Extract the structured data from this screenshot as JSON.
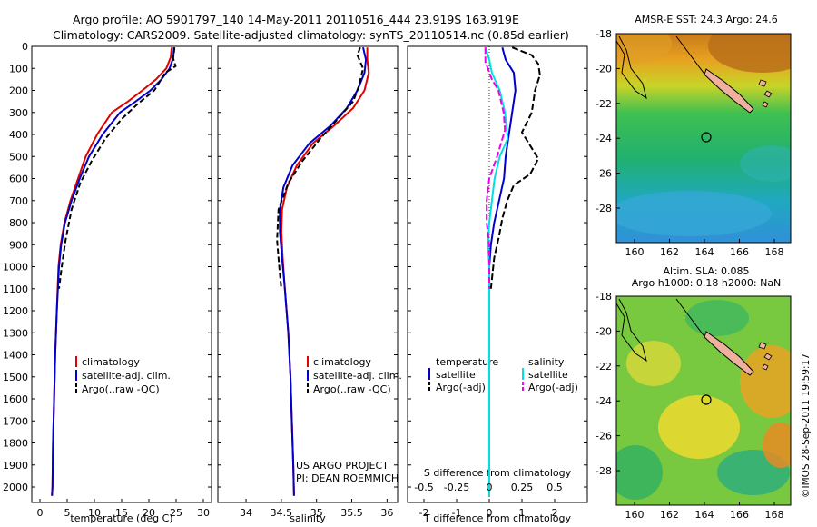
{
  "header": {
    "line1": "Argo profile: AO 5901797_140 14-May-2011 20110516_444 23.919S 163.919E",
    "line2": "Climatology: CARS2009. Satellite-adjusted climatology: synTS_20110514.nc (0.85d earlier)"
  },
  "chart_data": [
    {
      "type": "line",
      "xlabel": "temperature (deg C)",
      "ylabel": "",
      "xlim": [
        -1.5,
        31.5
      ],
      "ylim": [
        2070,
        0
      ],
      "xticks": [
        0,
        5,
        10,
        15,
        20,
        25,
        30
      ],
      "yticks": [
        0,
        100,
        200,
        300,
        400,
        500,
        600,
        700,
        800,
        900,
        1000,
        1100,
        1200,
        1300,
        1400,
        1500,
        1600,
        1700,
        1800,
        1900,
        2000
      ],
      "legend": [
        "climatology",
        "satellite-adj. clim.",
        "Argo(..raw -QC)"
      ],
      "legend_placement": "lower-left",
      "series": [
        {
          "name": "climatology",
          "color": "#e00000",
          "dash": "",
          "x": [
            24.2,
            24.0,
            23.2,
            21.3,
            18.8,
            16.2,
            13.2,
            10.5,
            8.4,
            7.0,
            5.6,
            4.5,
            3.8,
            3.4,
            3.1,
            2.8,
            2.6,
            2.4,
            2.3,
            2.2
          ],
          "y": [
            5,
            50,
            100,
            150,
            200,
            250,
            300,
            400,
            500,
            600,
            700,
            800,
            900,
            1000,
            1200,
            1400,
            1600,
            1800,
            2000,
            2040
          ]
        },
        {
          "name": "satellite-adj. clim.",
          "color": "#0000cc",
          "dash": "",
          "x": [
            24.6,
            24.5,
            23.8,
            22.3,
            20.3,
            17.6,
            14.7,
            11.5,
            9.0,
            7.3,
            5.8,
            4.6,
            3.9,
            3.5,
            3.1,
            2.8,
            2.6,
            2.4,
            2.3,
            2.2
          ],
          "y": [
            5,
            50,
            100,
            150,
            200,
            250,
            300,
            400,
            500,
            600,
            700,
            800,
            900,
            1000,
            1200,
            1400,
            1600,
            1800,
            2000,
            2040
          ]
        },
        {
          "name": "Argo(..raw -QC)",
          "color": "#000000",
          "dash": "6,3",
          "x": [
            24.7,
            24.6,
            24.4,
            24.9,
            23.0,
            21.0,
            18.0,
            15.0,
            12.0,
            9.5,
            7.4,
            5.8,
            4.7,
            4.0,
            3.5
          ],
          "y": [
            5,
            30,
            50,
            90,
            120,
            200,
            260,
            330,
            420,
            520,
            620,
            740,
            880,
            1000,
            1100
          ]
        }
      ]
    },
    {
      "type": "line",
      "xlabel": "salinity",
      "ylabel": "",
      "xlim": [
        33.6,
        36.15
      ],
      "ylim": [
        2070,
        0
      ],
      "xticks": [
        34,
        34.5,
        35,
        35.5,
        36
      ],
      "yticks": [
        0,
        100,
        200,
        300,
        400,
        500,
        600,
        700,
        800,
        900,
        1000,
        1100,
        1200,
        1300,
        1400,
        1500,
        1600,
        1700,
        1800,
        1900,
        2000
      ],
      "legend": [
        "climatology",
        "satellite-adj. clim.",
        "Argo(..raw -QC)"
      ],
      "legend_placement": "lower-right",
      "annotation": [
        "US ARGO PROJECT",
        "PI: DEAN ROEMMICH"
      ],
      "series": [
        {
          "name": "climatology",
          "color": "#e00000",
          "dash": "",
          "x": [
            35.72,
            35.72,
            35.74,
            35.68,
            35.52,
            35.25,
            34.95,
            34.72,
            34.58,
            34.51,
            34.5,
            34.52,
            34.55,
            34.6,
            34.63,
            34.65,
            34.67,
            34.68
          ],
          "y": [
            5,
            60,
            120,
            200,
            280,
            360,
            440,
            540,
            640,
            740,
            840,
            960,
            1100,
            1300,
            1500,
            1700,
            1900,
            2040
          ]
        },
        {
          "name": "satellite-adj. clim.",
          "color": "#0000cc",
          "dash": "",
          "x": [
            35.66,
            35.7,
            35.68,
            35.58,
            35.43,
            35.2,
            34.9,
            34.66,
            34.53,
            34.48,
            34.48,
            34.51,
            34.55,
            34.6,
            34.63,
            34.65,
            34.67,
            34.68
          ],
          "y": [
            5,
            60,
            120,
            200,
            280,
            360,
            440,
            540,
            640,
            740,
            840,
            960,
            1100,
            1300,
            1500,
            1700,
            1900,
            2040
          ]
        },
        {
          "name": "Argo(..raw -QC)",
          "color": "#000000",
          "dash": "6,3",
          "x": [
            35.62,
            35.58,
            35.66,
            35.6,
            35.52,
            35.3,
            35.05,
            34.8,
            34.6,
            34.46,
            34.44,
            34.47,
            34.5
          ],
          "y": [
            5,
            40,
            100,
            180,
            250,
            330,
            420,
            520,
            620,
            740,
            880,
            1000,
            1100
          ]
        }
      ]
    },
    {
      "type": "line",
      "xlabel": "T difference from climatology",
      "x2label": "S difference from climatology",
      "ylabel": "",
      "xlim": [
        -2.5,
        3.0
      ],
      "ylim": [
        2070,
        0
      ],
      "xticks": [
        -2,
        -1,
        0,
        1,
        2
      ],
      "x2ticks": [
        -0.5,
        -0.25,
        0,
        0.25,
        0.5
      ],
      "yticks": [
        0,
        100,
        200,
        300,
        400,
        500,
        600,
        700,
        800,
        900,
        1000,
        1100,
        1200,
        1300,
        1400,
        1500,
        1600,
        1700,
        1800,
        1900,
        2000
      ],
      "legend": [
        "temperature",
        "satellite",
        "Argo(-adj)",
        "salinity",
        "satellite",
        "Argo(-adj)"
      ],
      "legend_placement": "center",
      "series": [
        {
          "name": "satellite",
          "group": "temperature",
          "color": "#0000cc",
          "dash": "",
          "x": [
            0.4,
            0.5,
            0.75,
            0.8,
            0.7,
            0.6,
            0.5,
            0.45,
            0.3,
            0.15,
            0.05,
            0.0,
            0.0,
            0.0
          ],
          "y": [
            5,
            60,
            120,
            200,
            300,
            400,
            500,
            600,
            700,
            800,
            900,
            1000,
            1500,
            2040
          ]
        },
        {
          "name": "Argo(-adj)",
          "group": "temperature",
          "color": "#000000",
          "dash": "7,3",
          "x": [
            0.7,
            1.3,
            1.5,
            1.55,
            1.4,
            1.3,
            1.0,
            1.5,
            1.25,
            0.75,
            0.55,
            0.4,
            0.3,
            0.15,
            0.05
          ],
          "y": [
            5,
            40,
            80,
            130,
            200,
            300,
            390,
            510,
            580,
            630,
            700,
            780,
            860,
            960,
            1100
          ]
        },
        {
          "name": "satellite",
          "group": "salinity",
          "color": "#00e0e0",
          "dash": "",
          "x": [
            -0.03,
            0.0,
            0.02,
            0.08,
            0.12,
            0.14,
            0.08,
            0.04,
            0.02,
            0.0,
            -0.01,
            0.0,
            0.0
          ],
          "y": [
            5,
            60,
            120,
            200,
            300,
            420,
            500,
            600,
            700,
            800,
            900,
            1000,
            2040
          ]
        },
        {
          "name": "Argo(-adj)",
          "group": "salinity",
          "color": "#ee00ee",
          "dash": "7,3",
          "x": [
            -0.03,
            -0.03,
            0.02,
            0.07,
            0.11,
            0.12,
            0.06,
            0.0,
            -0.02,
            -0.02,
            0.0,
            0.0
          ],
          "y": [
            5,
            70,
            150,
            200,
            300,
            380,
            500,
            600,
            700,
            800,
            900,
            1100
          ]
        }
      ]
    }
  ],
  "maps": [
    {
      "title": "AMSR-E SST: 24.3 Argo: 24.6",
      "subtitle": "",
      "xticks": [
        "160",
        "162",
        "164",
        "166",
        "168"
      ],
      "yticks": [
        "-18",
        "-20",
        "-22",
        "-24",
        "-26",
        "-28"
      ]
    },
    {
      "title": "Altim. SLA: 0.085",
      "subtitle": "Argo h1000: 0.18 h2000: NaN",
      "xticks": [
        "160",
        "162",
        "164",
        "166",
        "168"
      ],
      "yticks": [
        "-18",
        "-20",
        "-22",
        "-24",
        "-26",
        "-28"
      ]
    }
  ],
  "footer": {
    "credit": "©IMOS 28-Sep-2011 19:59:17"
  }
}
